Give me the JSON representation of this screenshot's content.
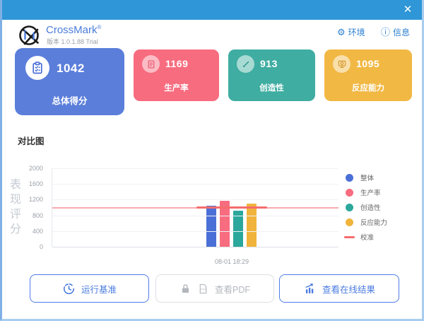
{
  "window": {
    "close_label": "✕"
  },
  "header": {
    "app_title": "CrossMark",
    "app_title_mark": "®",
    "version": "版本 1.0.1.88 Trial",
    "env_label": "环境",
    "info_label": "信息",
    "env_icon_glyph": "⚙",
    "info_icon_glyph": "ⓘ"
  },
  "score_cards": [
    {
      "score": "1042",
      "label": "总体得分",
      "color": "#5b7edb",
      "icon": "clipboard-icon"
    },
    {
      "score": "1169",
      "label": "生产率",
      "color": "#f76c7f",
      "icon": "document-icon"
    },
    {
      "score": "913",
      "label": "创造性",
      "color": "#3fada1",
      "icon": "brush-icon"
    },
    {
      "score": "1095",
      "label": "反应能力",
      "color": "#f1b844",
      "icon": "monitor-icon"
    }
  ],
  "chart_section": {
    "title": "对比图"
  },
  "chart_data": {
    "type": "bar",
    "title": "对比图",
    "ylabel": "表现评分",
    "categories": [
      "08-01 18:29"
    ],
    "series": [
      {
        "name": "整体",
        "value": 1042,
        "color": "#4a6fd6"
      },
      {
        "name": "生产率",
        "value": 1169,
        "color": "#f76c7f"
      },
      {
        "name": "创造性",
        "value": 913,
        "color": "#2ba79b"
      },
      {
        "name": "反应能力",
        "value": 1095,
        "color": "#f0b43c"
      }
    ],
    "calibration": {
      "name": "校准",
      "value": 1000,
      "color": "#f56c6c"
    },
    "ylim": [
      0,
      2000
    ],
    "yticks": [
      0,
      400,
      800,
      1200,
      1600,
      2000
    ],
    "legend_position": "right",
    "grid": true
  },
  "footer_buttons": {
    "run": "运行基准",
    "pdf": "查看PDF",
    "online": "查看在线结果"
  }
}
